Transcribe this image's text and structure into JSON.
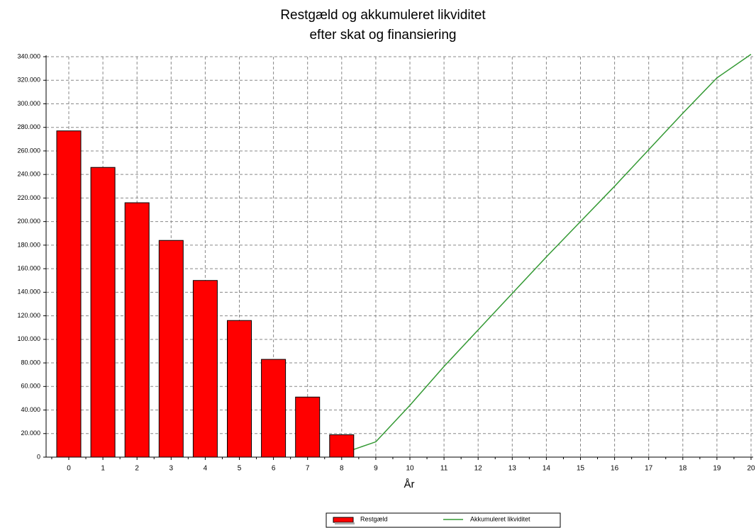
{
  "chart_data": {
    "type": "bar-line",
    "title": [
      "Restgæld og akkumuleret likviditet",
      "efter skat og finansiering"
    ],
    "x_label": "År",
    "categories": [
      "0",
      "1",
      "2",
      "3",
      "4",
      "5",
      "6",
      "7",
      "8",
      "9",
      "10",
      "11",
      "12",
      "13",
      "14",
      "15",
      "16",
      "17",
      "18",
      "19",
      "20"
    ],
    "series": [
      {
        "name": "Restgæld",
        "type": "bar",
        "color": "#ff0000",
        "values": [
          277000,
          246000,
          216000,
          184000,
          150000,
          116000,
          83000,
          51000,
          19000,
          null,
          null,
          null,
          null,
          null,
          null,
          null,
          null,
          null,
          null,
          null,
          null
        ]
      },
      {
        "name": "Akkumuleret likviditet",
        "type": "line",
        "color": "#339933",
        "values": [
          null,
          null,
          null,
          null,
          null,
          null,
          null,
          null,
          3000,
          13000,
          44000,
          77000,
          108000,
          139000,
          170000,
          200000,
          230000,
          261000,
          292000,
          322000,
          342000
        ]
      }
    ],
    "ylim": [
      0,
      340000
    ],
    "yticks": [
      0,
      {
        "value": 20000,
        "label": "20.000"
      },
      {
        "value": 40000,
        "label": "40.000"
      },
      {
        "value": 60000,
        "label": "60.000"
      },
      {
        "value": 80000,
        "label": "80.000"
      },
      {
        "value": 100000,
        "label": "100.000"
      },
      {
        "value": 120000,
        "label": "120.000"
      },
      {
        "value": 140000,
        "label": "140.000"
      },
      {
        "value": 160000,
        "label": "160.000"
      },
      {
        "value": 180000,
        "label": "180.000"
      },
      {
        "value": 200000,
        "label": "200.000"
      },
      {
        "value": 220000,
        "label": "220.000"
      },
      {
        "value": 240000,
        "label": "240.000"
      },
      {
        "value": 260000,
        "label": "260.000"
      },
      {
        "value": 280000,
        "label": "280.000"
      },
      {
        "value": 300000,
        "label": "300.000"
      },
      {
        "value": 320000,
        "label": "320.000"
      },
      {
        "value": 340000,
        "label": "340.000"
      }
    ],
    "grid": true
  }
}
